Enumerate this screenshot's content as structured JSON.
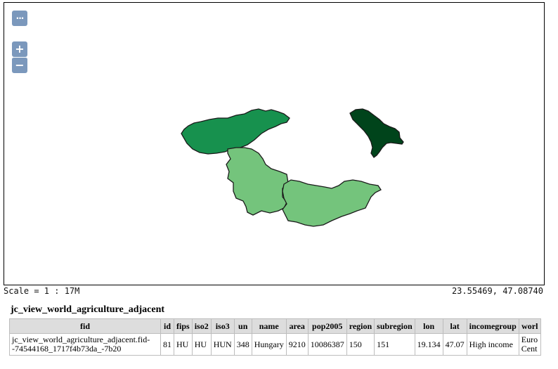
{
  "map": {
    "controls": {
      "more_label": "···",
      "zoom_in_label": "+",
      "zoom_out_label": "−"
    },
    "features": [
      {
        "name": "slovakia",
        "fill": "#17914e"
      },
      {
        "name": "moldova",
        "fill": "#00441b"
      },
      {
        "name": "hungary",
        "fill": "#74c47c"
      },
      {
        "name": "romania-region",
        "fill": "#74c47c"
      }
    ],
    "stroke": "#1a1a1a"
  },
  "status": {
    "scale": "Scale = 1 : 17M",
    "coordinates": "23.55469, 47.08740"
  },
  "layer": {
    "title": "jc_view_world_agriculture_adjacent"
  },
  "table": {
    "headers": [
      "fid",
      "id",
      "fips",
      "iso2",
      "iso3",
      "un",
      "name",
      "area",
      "pop2005",
      "region",
      "subregion",
      "lon",
      "lat",
      "incomegroup",
      "worl"
    ],
    "row": {
      "fid": "jc_view_world_agriculture_adjacent.fid--74544168_1717f4b73da_-7b20",
      "id": "81",
      "fips": "HU",
      "iso2": "HU",
      "iso3": "HUN",
      "un": "348",
      "name": "Hungary",
      "area": "9210",
      "pop2005": "10086387",
      "region": "150",
      "subregion": "151",
      "lon": "19.134",
      "lat": "47.07",
      "incomegroup": "High income",
      "worl": "Euro Cent"
    }
  }
}
